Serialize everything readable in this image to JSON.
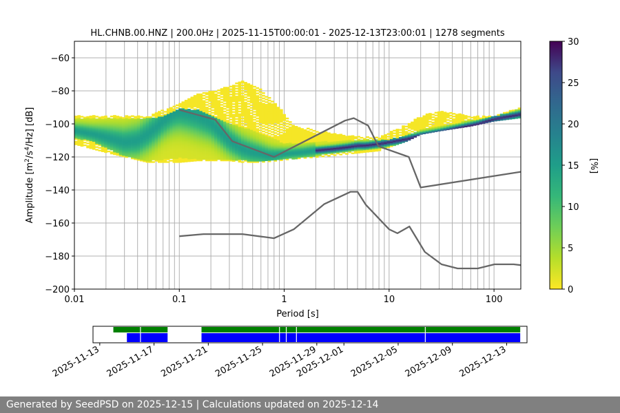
{
  "chart_data": [
    {
      "type": "heatmap",
      "title": "HL.CHNB.00.HNZ | 200.0Hz | 2025-11-15T00:00:01 - 2025-12-13T23:00:01 | 1278 segments",
      "xlabel": "Period [s]",
      "ylabel_main": "Amplitude [m",
      "ylabel_sup1": "2",
      "ylabel_mid": "/s",
      "ylabel_sup2": "4",
      "ylabel_end": "/Hz] [dB]",
      "xscale": "log",
      "xlim": [
        0.01,
        180
      ],
      "ylim": [
        -200,
        -50
      ],
      "grid": true,
      "xticks": [
        0.01,
        0.1,
        1,
        10,
        100
      ],
      "xtick_labels": [
        "0.01",
        "0.1",
        "1",
        "10",
        "100"
      ],
      "yticks": [
        -200,
        -180,
        -160,
        -140,
        -120,
        -100,
        -80,
        -60
      ],
      "ytick_labels": [
        "−200",
        "−180",
        "−160",
        "−140",
        "−120",
        "−100",
        "−80",
        "−60"
      ],
      "colorbar": {
        "label": "[%]",
        "range": [
          0,
          30
        ],
        "ticks": [
          0,
          5,
          10,
          15,
          20,
          25,
          30
        ],
        "tick_labels": [
          "0",
          "5",
          "10",
          "15",
          "20",
          "25",
          "30"
        ],
        "colormap": "viridis_r"
      },
      "mode_curve": {
        "x": [
          0.01,
          0.015,
          0.02,
          0.03,
          0.04,
          0.05,
          0.06,
          0.07,
          0.08,
          0.09,
          0.1,
          0.12,
          0.15,
          0.2,
          0.25,
          0.3,
          0.4,
          0.5,
          0.6,
          0.7,
          0.8,
          1,
          1.5,
          2,
          3,
          4,
          5,
          6,
          8,
          10,
          15,
          20,
          30,
          50,
          70,
          100,
          150,
          180
        ],
        "y": [
          -104,
          -106,
          -108,
          -111,
          -110,
          -106,
          -102,
          -98,
          -95,
          -93,
          -92,
          -93,
          -95,
          -99,
          -105,
          -110,
          -115,
          -117,
          -118,
          -119,
          -119,
          -118,
          -117,
          -116,
          -115,
          -114,
          -113,
          -113,
          -112,
          -111,
          -109,
          -107,
          -105,
          -102,
          -100,
          -97,
          -95,
          -94
        ]
      },
      "density_band": {
        "x": [
          0.01,
          0.015,
          0.02,
          0.03,
          0.05,
          0.07,
          0.1,
          0.15,
          0.2,
          0.3,
          0.5,
          0.7,
          1,
          1.5,
          2,
          3,
          5,
          7,
          10,
          15,
          20,
          30,
          50,
          100,
          180
        ],
        "upper": [
          -97,
          -97,
          -97,
          -97,
          -97,
          -96,
          -91,
          -92,
          -95,
          -100,
          -104,
          -108,
          -112,
          -112,
          -111,
          -111,
          -110,
          -110,
          -110,
          -107,
          -104,
          -102,
          -99,
          -96,
          -91
        ],
        "lower": [
          -108,
          -110,
          -114,
          -119,
          -122,
          -121,
          -120,
          -121,
          -121,
          -121,
          -122,
          -122,
          -121,
          -120,
          -119,
          -117,
          -116,
          -115,
          -113,
          -111,
          -108,
          -105,
          -103,
          -99,
          -97
        ]
      },
      "sparse_band": {
        "x": [
          0.01,
          0.02,
          0.05,
          0.1,
          0.15,
          0.3,
          0.4,
          0.6,
          0.9,
          1.2,
          2,
          4,
          8,
          15,
          20,
          30,
          60,
          100,
          180
        ],
        "upper": [
          -95,
          -95,
          -95,
          -88,
          -82,
          -77,
          -74,
          -79,
          -90,
          -100,
          -104,
          -107,
          -108,
          -100,
          -95,
          -92,
          -95,
          -95,
          -90
        ],
        "lower": [
          -112,
          -117,
          -123,
          -123,
          -122,
          -122,
          -123,
          -123,
          -122,
          -121,
          -120,
          -118,
          -116,
          -110,
          -106,
          -104,
          -101,
          -98,
          -96
        ]
      },
      "nhnm": {
        "x": [
          0.1,
          0.22,
          0.32,
          0.8,
          3.8,
          4.6,
          6.3,
          7.9,
          15.4,
          20,
          180
        ],
        "y": [
          -91.5,
          -97.4,
          -110.5,
          -120,
          -98,
          -96.5,
          -101,
          -113.5,
          -120,
          -138.5,
          -129
        ]
      },
      "nlnm": {
        "x": [
          0.1,
          0.17,
          0.4,
          0.8,
          1.24,
          2.4,
          4.3,
          5,
          6,
          10,
          12,
          15.6,
          21.9,
          31.6,
          45,
          70,
          101,
          154,
          180
        ],
        "y": [
          -168,
          -166.7,
          -166.7,
          -169.2,
          -163.7,
          -148.6,
          -141.1,
          -141.1,
          -149,
          -163.8,
          -166.2,
          -162.1,
          -177.5,
          -185,
          -187.5,
          -187.5,
          -185,
          -185,
          -185.5
        ]
      }
    },
    {
      "type": "timeline",
      "xtick_labels": [
        "2025-11-13",
        "2025-11-17",
        "2025-11-21",
        "2025-11-25",
        "2025-11-29",
        "2025-12-01",
        "2025-12-05",
        "2025-12-09",
        "2025-12-13"
      ],
      "xtick_dates": [
        "2025-11-13",
        "2025-11-17",
        "2025-11-21",
        "2025-11-25",
        "2025-11-29",
        "2025-12-01",
        "2025-12-05",
        "2025-12-09",
        "2025-12-13"
      ],
      "xlim": [
        "2025-11-12T12:00",
        "2025-12-14T12:00"
      ],
      "data_available": [
        [
          "2025-11-14T00:00",
          "2025-11-18T00:00"
        ],
        [
          "2025-11-20T12:00",
          "2025-12-14T00:00"
        ]
      ],
      "used_segments": [
        [
          "2025-11-15T00:00",
          "2025-11-18T00:00"
        ],
        [
          "2025-11-20T12:00",
          "2025-12-14T00:00"
        ]
      ],
      "gaps": [
        "2025-11-16T00:00",
        "2025-11-26T06:00",
        "2025-11-26T18:00",
        "2025-11-27T12:00",
        "2025-12-07T00:00"
      ]
    }
  ],
  "footer_text": "Generated by SeedPSD on 2025-12-15 | Calculations updated on 2025-12-14",
  "colors": {
    "curve_gray": "#666666",
    "grid": "#b0b0b0",
    "data_available": "#008000",
    "used_segments": "#0000ff",
    "footer_bg": "#808080"
  }
}
